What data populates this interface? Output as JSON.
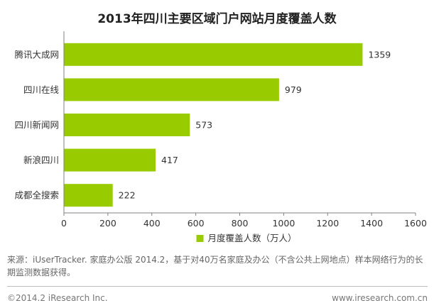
{
  "chart_data": {
    "type": "bar",
    "orientation": "horizontal",
    "title": "2013年四川主要区域门户网站月度覆盖人数",
    "categories": [
      "腾讯大成网",
      "四川在线",
      "四川新闻网",
      "新浪四川",
      "成都全搜索"
    ],
    "series": [
      {
        "name": "月度覆盖人数（万人）",
        "values": [
          1359,
          979,
          573,
          417,
          222
        ],
        "color": "#99cc00"
      }
    ],
    "xlim": [
      0,
      1600
    ],
    "xticks": [
      0,
      200,
      400,
      600,
      800,
      1000,
      1200,
      1400,
      1600
    ],
    "grid": false,
    "legend_position": "bottom"
  },
  "source_note": "来源：iUserTracker. 家庭办公版 2014.2，基于对40万名家庭及办公（不含公共上网地点）样本网络行为的长期监测数据获得。",
  "footer": {
    "copyright": "©2014.2 iResearch Inc.",
    "website": "www.iresearch.com.cn"
  },
  "colors": {
    "bar": "#99cc00",
    "axis": "#808080"
  }
}
